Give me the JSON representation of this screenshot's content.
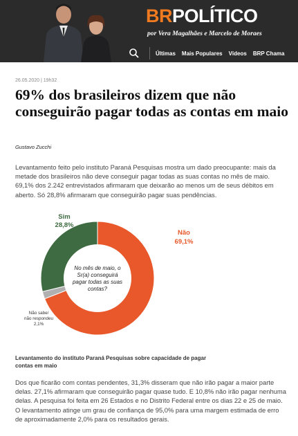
{
  "header": {
    "logo_br": "BR",
    "logo_politico": "POLÍTICO",
    "byline": "por Vera Magalhães e Marcelo de Moraes",
    "nav": [
      "Últimas",
      "Mais Populares",
      "Vídeos",
      "BRP Chama"
    ],
    "accent_color": "#f07a1f"
  },
  "article": {
    "date": "26.05.2020 | 19h32",
    "title": "69% dos brasileiros dizem que não conseguirão pagar todas as contas em maio",
    "author": "Gustavo Zucchi",
    "lead": "Levantamento feito pelo instituto Paraná Pesquisas mostra um dado preocupante: mais da metade dos brasileiros não deve conseguir pagar todas as suas contas no mês de maio. 69,1% dos 2.242 entrevistados afirmaram que deixarão ao menos um de seus débitos em aberto. Só 28,8% afirmaram que conseguirão pagar suas pendências.",
    "caption": "Levantamento do instituto Paraná Pesquisas sobre capacidade de pagar contas em maio",
    "body": "Dos que ficarão com contas pendentes, 31,3% disseram que não irão pagar a maior parte delas. 27,1% afirmaram que conseguirão pagar quase tudo. E 10,8% não irão pagar nenhuma delas. A pesquisa foi feita em 26 Estados e no Distrito Federal entre os dias 22 e 25 de maio. O levantamento atinge um grau de confiança de 95,0% para uma margem estimada de erro de aproximadamente 2,0% para os resultados gerais."
  },
  "chart_data": {
    "type": "pie",
    "variant": "donut",
    "center_label": "No mês de maio, o Sr(a) conseguirá pagar todas as suas contas?",
    "slices": [
      {
        "label": "Não",
        "value": 69.1,
        "value_label": "69,1%",
        "color": "#e8582a"
      },
      {
        "label": "Não sabe/ não respondeu",
        "value": 2.1,
        "value_label": "2,1%",
        "color": "#b0b0b0"
      },
      {
        "label": "Sim",
        "value": 28.8,
        "value_label": "28,8%",
        "color": "#3e6b41"
      }
    ]
  }
}
